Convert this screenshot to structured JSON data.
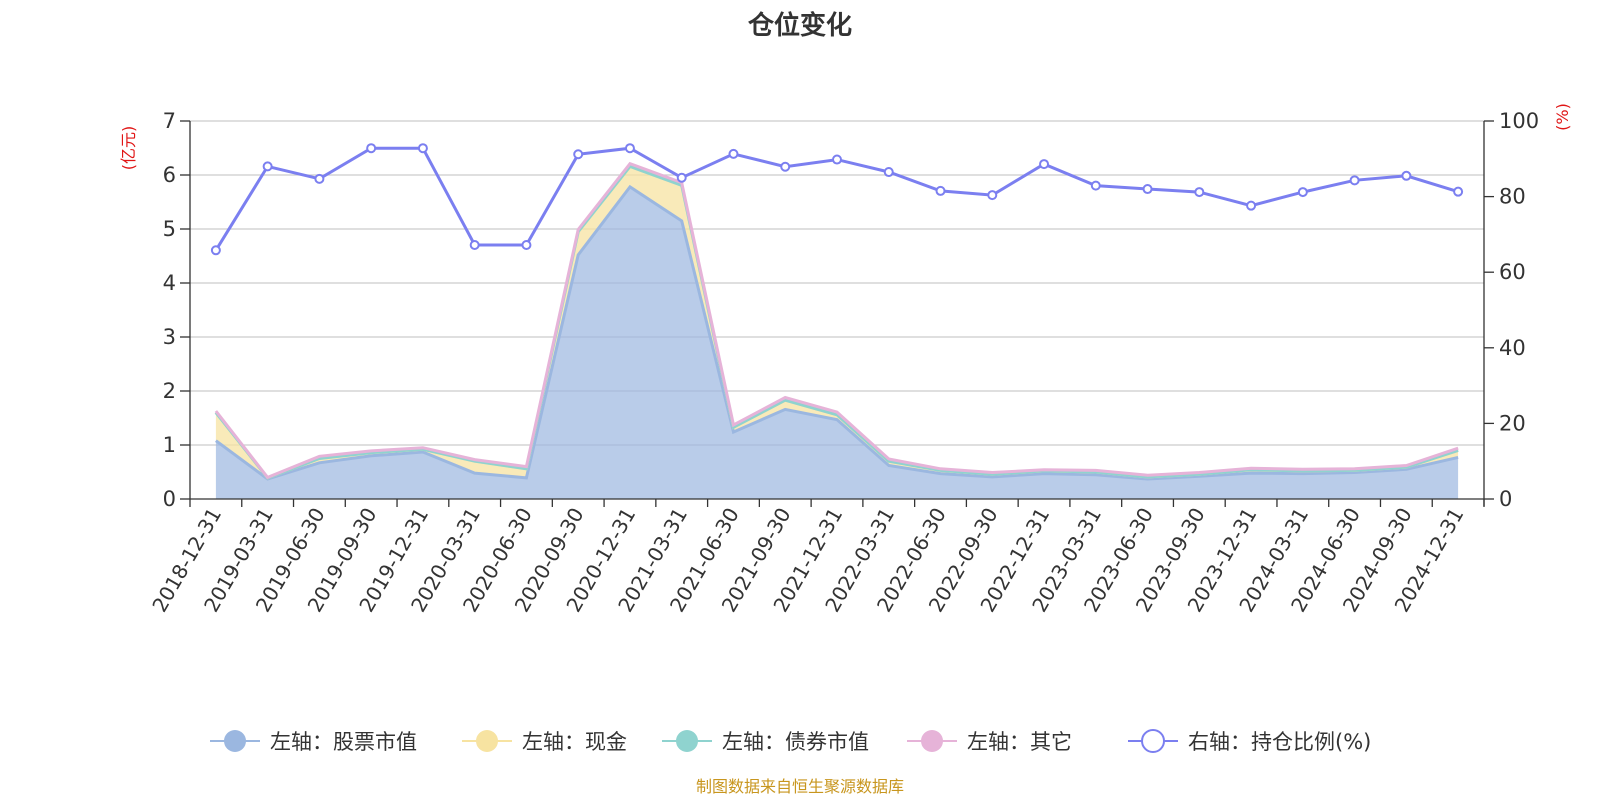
{
  "title": "仓位变化",
  "source_note": "制图数据来自恒生聚源数据库",
  "units": {
    "left": "(亿元)",
    "right": "(%)"
  },
  "colors": {
    "stock": "#9bb7e0",
    "cash": "#f7e3a1",
    "bond": "#8fd3cf",
    "other": "#e6b3d8",
    "ratio": "#7b7ff0"
  },
  "chart_data": {
    "type": "area",
    "title": "仓位变化",
    "x": [
      "2018-12-31",
      "2019-03-31",
      "2019-06-30",
      "2019-09-30",
      "2019-12-31",
      "2020-03-31",
      "2020-06-30",
      "2020-09-30",
      "2020-12-31",
      "2021-03-31",
      "2021-06-30",
      "2021-09-30",
      "2021-12-31",
      "2022-03-31",
      "2022-06-30",
      "2022-09-30",
      "2022-12-31",
      "2023-03-31",
      "2023-06-30",
      "2023-09-30",
      "2023-12-31",
      "2024-03-31",
      "2024-06-30",
      "2024-09-30",
      "2024-12-31"
    ],
    "left_axis": {
      "ylim": [
        0,
        7
      ],
      "ticks": [
        "0",
        "1",
        "2",
        "3",
        "4",
        "5",
        "6",
        "7"
      ]
    },
    "right_axis": {
      "ylim": [
        0,
        100
      ],
      "ticks": [
        "0",
        "20",
        "40",
        "60",
        "80",
        "100"
      ]
    },
    "grid": true,
    "legend_position": "bottom",
    "series": [
      {
        "name": "左轴：股票市值",
        "axis": "left",
        "stack": true,
        "values": [
          1.08,
          0.37,
          0.67,
          0.8,
          0.87,
          0.48,
          0.39,
          4.52,
          5.78,
          5.15,
          1.24,
          1.66,
          1.47,
          0.62,
          0.47,
          0.41,
          0.47,
          0.45,
          0.37,
          0.42,
          0.48,
          0.47,
          0.49,
          0.55,
          0.77
        ]
      },
      {
        "name": "左轴：现金",
        "axis": "left",
        "stack": true,
        "values": [
          0.52,
          0.02,
          0.08,
          0.06,
          0.05,
          0.22,
          0.17,
          0.43,
          0.38,
          0.66,
          0.09,
          0.17,
          0.09,
          0.08,
          0.06,
          0.05,
          0.05,
          0.05,
          0.04,
          0.04,
          0.06,
          0.05,
          0.04,
          0.04,
          0.13
        ]
      },
      {
        "name": "左轴：债券市值",
        "axis": "left",
        "stack": true,
        "values": [
          0,
          0,
          0,
          0,
          0,
          0,
          0,
          0,
          0,
          0,
          0,
          0,
          0,
          0,
          0,
          0,
          0,
          0,
          0,
          0,
          0,
          0,
          0,
          0,
          0
        ]
      },
      {
        "name": "左轴：其它",
        "axis": "left",
        "stack": true,
        "values": [
          0.03,
          0.01,
          0.04,
          0.03,
          0.03,
          0.03,
          0.04,
          0.04,
          0.05,
          0.05,
          0.04,
          0.05,
          0.05,
          0.04,
          0.03,
          0.03,
          0.02,
          0.03,
          0.03,
          0.03,
          0.03,
          0.03,
          0.03,
          0.03,
          0.04
        ]
      },
      {
        "name": "右轴：持仓比例(%)",
        "axis": "right",
        "type": "line",
        "values": [
          65.8,
          88.0,
          84.7,
          92.8,
          92.8,
          67.2,
          67.2,
          91.2,
          92.8,
          85.0,
          91.3,
          87.9,
          89.8,
          86.5,
          81.5,
          80.4,
          88.6,
          82.9,
          82.0,
          81.2,
          77.6,
          81.2,
          84.3,
          85.5,
          81.3
        ]
      }
    ]
  }
}
